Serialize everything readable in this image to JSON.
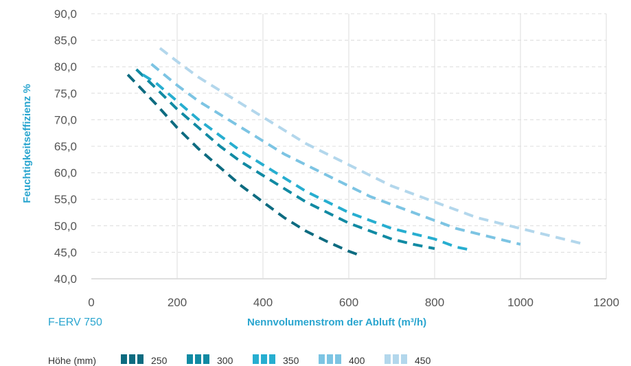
{
  "product_label": "F-ERV 750",
  "chart_data": {
    "type": "line",
    "title": "",
    "xlabel": "Nennvolumenstrom der Abluft (m³/h)",
    "ylabel": "Feuchtigkeitseffizienz %",
    "xlim": [
      0,
      1200
    ],
    "ylim": [
      40,
      90
    ],
    "xticks": [
      "0",
      "200",
      "400",
      "600",
      "800",
      "1000",
      "1200"
    ],
    "yticks": [
      "40,0",
      "45,0",
      "50,0",
      "55,0",
      "60,0",
      "65,0",
      "70,0",
      "75,0",
      "80,0",
      "85,0",
      "90,0"
    ],
    "grid": true,
    "line_style": "dashed",
    "legend_title": "Höhe (mm)",
    "legend_position": "bottom",
    "series": [
      {
        "name": "250",
        "color": "#0d6b80",
        "x": [
          85,
          150,
          200,
          250,
          300,
          350,
          400,
          450,
          500,
          550,
          600,
          630
        ],
        "y": [
          78.5,
          73.0,
          68.5,
          64.5,
          61.0,
          57.5,
          54.5,
          51.5,
          49.0,
          47.0,
          45.2,
          44.3
        ]
      },
      {
        "name": "300",
        "color": "#118aa3",
        "x": [
          105,
          150,
          200,
          250,
          300,
          350,
          400,
          450,
          500,
          550,
          600,
          650,
          700,
          750,
          800
        ],
        "y": [
          79.5,
          76.0,
          72.0,
          68.5,
          65.0,
          62.0,
          59.5,
          57.0,
          54.5,
          52.5,
          50.5,
          49.0,
          47.5,
          46.5,
          45.7
        ]
      },
      {
        "name": "350",
        "color": "#27aed0",
        "x": [
          120,
          150,
          200,
          250,
          300,
          350,
          400,
          450,
          500,
          550,
          600,
          650,
          700,
          750,
          800,
          850,
          880
        ],
        "y": [
          78.5,
          77.0,
          73.5,
          70.0,
          67.0,
          64.0,
          61.5,
          59.0,
          56.5,
          54.5,
          52.5,
          51.0,
          49.5,
          48.5,
          47.5,
          46.0,
          45.5
        ]
      },
      {
        "name": "400",
        "color": "#7cc4e3",
        "x": [
          140,
          200,
          250,
          300,
          350,
          400,
          450,
          500,
          550,
          600,
          650,
          700,
          750,
          800,
          850,
          900,
          950,
          1000
        ],
        "y": [
          80.5,
          76.5,
          73.5,
          71.0,
          68.5,
          66.0,
          63.5,
          61.5,
          59.5,
          57.5,
          55.5,
          54.0,
          52.5,
          51.0,
          49.5,
          48.5,
          47.5,
          46.5
        ]
      },
      {
        "name": "450",
        "color": "#b3d7ec",
        "x": [
          160,
          200,
          250,
          300,
          350,
          400,
          450,
          500,
          550,
          600,
          650,
          700,
          750,
          800,
          850,
          900,
          950,
          1000,
          1050,
          1100,
          1140
        ],
        "y": [
          83.5,
          81.0,
          78.0,
          75.5,
          73.0,
          70.5,
          68.0,
          65.5,
          63.5,
          61.5,
          59.5,
          57.5,
          56.0,
          54.5,
          53.0,
          51.5,
          50.5,
          49.5,
          48.5,
          47.5,
          46.7
        ]
      }
    ]
  },
  "colors": {
    "axis_title": "#29a5cf",
    "grid": "#dcdcdc",
    "tick_text": "#555555"
  }
}
